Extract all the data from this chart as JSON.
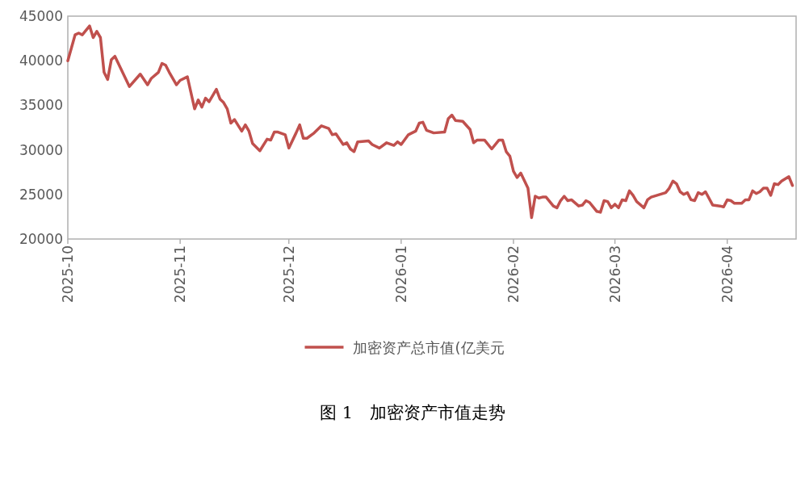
{
  "chart_data": {
    "type": "line",
    "title": "图 1　加密资产市值走势",
    "legend": "bottom",
    "grid": false,
    "marker": "none",
    "line_style": "solid",
    "ylim": [
      20000,
      45000
    ],
    "yticks": [
      20000,
      25000,
      30000,
      35000,
      40000,
      45000
    ],
    "xlim": [
      "2025-10-01",
      "2026-04-20"
    ],
    "xticks": [
      {
        "value": "2025-10-01",
        "label": "2025-10"
      },
      {
        "value": "2025-11-01",
        "label": "2025-11"
      },
      {
        "value": "2025-12-01",
        "label": "2025-12"
      },
      {
        "value": "2026-01-01",
        "label": "2026-01"
      },
      {
        "value": "2026-02-01",
        "label": "2026-02"
      },
      {
        "value": "2026-03-01",
        "label": "2026-03"
      },
      {
        "value": "2026-04-01",
        "label": "2026-04"
      }
    ],
    "x": [
      "2025-10-01",
      "2025-10-03",
      "2025-10-04",
      "2025-10-05",
      "2025-10-07",
      "2025-10-08",
      "2025-10-09",
      "2025-10-10",
      "2025-10-11",
      "2025-10-12",
      "2025-10-13",
      "2025-10-14",
      "2025-10-18",
      "2025-10-21",
      "2025-10-23",
      "2025-10-24",
      "2025-10-26",
      "2025-10-27",
      "2025-10-28",
      "2025-10-29",
      "2025-10-31",
      "2025-11-01",
      "2025-11-03",
      "2025-11-05",
      "2025-11-06",
      "2025-11-07",
      "2025-11-08",
      "2025-11-09",
      "2025-11-11",
      "2025-11-12",
      "2025-11-13",
      "2025-11-14",
      "2025-11-15",
      "2025-11-16",
      "2025-11-18",
      "2025-11-19",
      "2025-11-20",
      "2025-11-21",
      "2025-11-23",
      "2025-11-25",
      "2025-11-26",
      "2025-11-27",
      "2025-11-28",
      "2025-11-30",
      "2025-12-01",
      "2025-12-03",
      "2025-12-04",
      "2025-12-05",
      "2025-12-06",
      "2025-12-08",
      "2025-12-10",
      "2025-12-12",
      "2025-12-13",
      "2025-12-14",
      "2025-12-16",
      "2025-12-17",
      "2025-12-18",
      "2025-12-19",
      "2025-12-20",
      "2025-12-23",
      "2025-12-24",
      "2025-12-26",
      "2025-12-28",
      "2025-12-30",
      "2025-12-31",
      "2026-01-01",
      "2026-01-03",
      "2026-01-05",
      "2026-01-06",
      "2026-01-07",
      "2026-01-08",
      "2026-01-10",
      "2026-01-13",
      "2026-01-14",
      "2026-01-15",
      "2026-01-16",
      "2026-01-18",
      "2026-01-20",
      "2026-01-21",
      "2026-01-22",
      "2026-01-24",
      "2026-01-26",
      "2026-01-28",
      "2026-01-29",
      "2026-01-30",
      "2026-01-31",
      "2026-02-01",
      "2026-02-02",
      "2026-02-03",
      "2026-02-05",
      "2026-02-06",
      "2026-02-07",
      "2026-02-08",
      "2026-02-09",
      "2026-02-10",
      "2026-02-12",
      "2026-02-13",
      "2026-02-14",
      "2026-02-15",
      "2026-02-16",
      "2026-02-17",
      "2026-02-19",
      "2026-02-20",
      "2026-02-21",
      "2026-02-22",
      "2026-02-24",
      "2026-02-25",
      "2026-02-26",
      "2026-02-27",
      "2026-02-28",
      "2026-03-01",
      "2026-03-02",
      "2026-03-03",
      "2026-03-04",
      "2026-03-05",
      "2026-03-06",
      "2026-03-07",
      "2026-03-09",
      "2026-03-10",
      "2026-03-11",
      "2026-03-15",
      "2026-03-16",
      "2026-03-17",
      "2026-03-18",
      "2026-03-19",
      "2026-03-20",
      "2026-03-21",
      "2026-03-22",
      "2026-03-23",
      "2026-03-24",
      "2026-03-25",
      "2026-03-26",
      "2026-03-28",
      "2026-03-30",
      "2026-03-31",
      "2026-04-01",
      "2026-04-02",
      "2026-04-03",
      "2026-04-05",
      "2026-04-06",
      "2026-04-07",
      "2026-04-08",
      "2026-04-09",
      "2026-04-10",
      "2026-04-11",
      "2026-04-12",
      "2026-04-13",
      "2026-04-14",
      "2026-04-15",
      "2026-04-16",
      "2026-04-18",
      "2026-04-19"
    ],
    "series": [
      {
        "name": "加密资产总市值(亿美元",
        "color": "#c0504d",
        "values": [
          40000,
          42900,
          43100,
          42900,
          43900,
          42600,
          43300,
          42600,
          38700,
          37900,
          40100,
          40500,
          37100,
          38500,
          37300,
          38000,
          38700,
          39700,
          39500,
          38700,
          37300,
          37800,
          38200,
          34600,
          35600,
          34800,
          35800,
          35400,
          36800,
          35700,
          35300,
          34600,
          33000,
          33400,
          32100,
          32800,
          32100,
          30700,
          29900,
          31200,
          31100,
          32000,
          32000,
          31700,
          30200,
          31900,
          32800,
          31300,
          31300,
          31900,
          32700,
          32400,
          31700,
          31800,
          30600,
          30800,
          30100,
          29800,
          30900,
          31000,
          30600,
          30200,
          30800,
          30500,
          30900,
          30600,
          31700,
          32100,
          33000,
          33100,
          32200,
          31900,
          32000,
          33500,
          33900,
          33300,
          33200,
          32300,
          30800,
          31100,
          31100,
          30100,
          31100,
          31100,
          29800,
          29300,
          27600,
          26900,
          27400,
          25700,
          22400,
          24800,
          24600,
          24700,
          24700,
          23700,
          23500,
          24300,
          24800,
          24300,
          24400,
          23700,
          23800,
          24300,
          24100,
          23100,
          23000,
          24300,
          24200,
          23500,
          23900,
          23500,
          24400,
          24300,
          25400,
          24900,
          24200,
          23500,
          24400,
          24700,
          25200,
          25700,
          26500,
          26200,
          25300,
          25000,
          25200,
          24400,
          24300,
          25200,
          25000,
          25300,
          23800,
          23700,
          23600,
          24400,
          24300,
          24000,
          24000,
          24400,
          24400,
          25400,
          25100,
          25300,
          25700,
          25700,
          24900,
          26200,
          26100,
          26500,
          27000,
          26000
        ]
      }
    ]
  }
}
